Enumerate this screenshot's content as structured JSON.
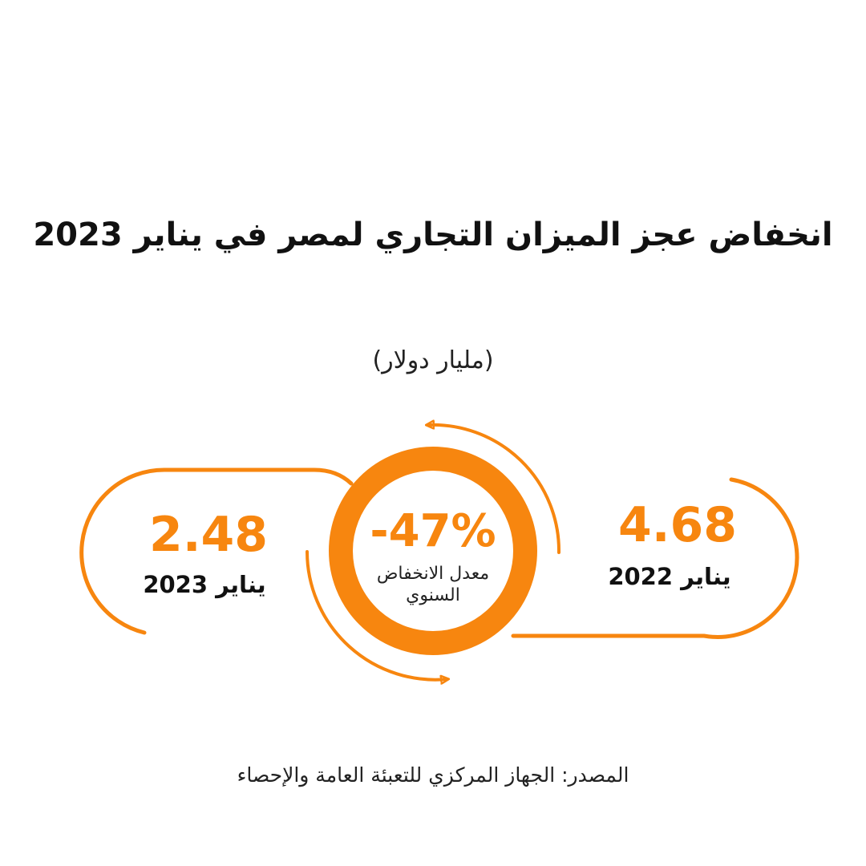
{
  "header": {
    "title": "انخفاض عجز الميزان التجاري لمصر في يناير 2023",
    "unit": "(مليار دولار)"
  },
  "colors": {
    "accent": "#f7860f",
    "text": "#111111",
    "background": "#ffffff"
  },
  "chart_data": {
    "type": "table",
    "title": "انخفاض عجز الميزان التجاري لمصر في يناير 2023",
    "unit": "(مليار دولار)",
    "categories": [
      "يناير 2022",
      "يناير 2023"
    ],
    "values": [
      4.68,
      2.48
    ],
    "change_pct": -47
  },
  "items": [
    {
      "value": "4.68",
      "label": "يناير 2022"
    },
    {
      "value": "2.48",
      "label": "يناير 2023"
    }
  ],
  "center": {
    "value": "-47%",
    "label": "معدل الانخفاض السنوي"
  },
  "footer": {
    "source": "المصدر: الجهاز المركزي للتعبئة العامة والإحصاء"
  }
}
